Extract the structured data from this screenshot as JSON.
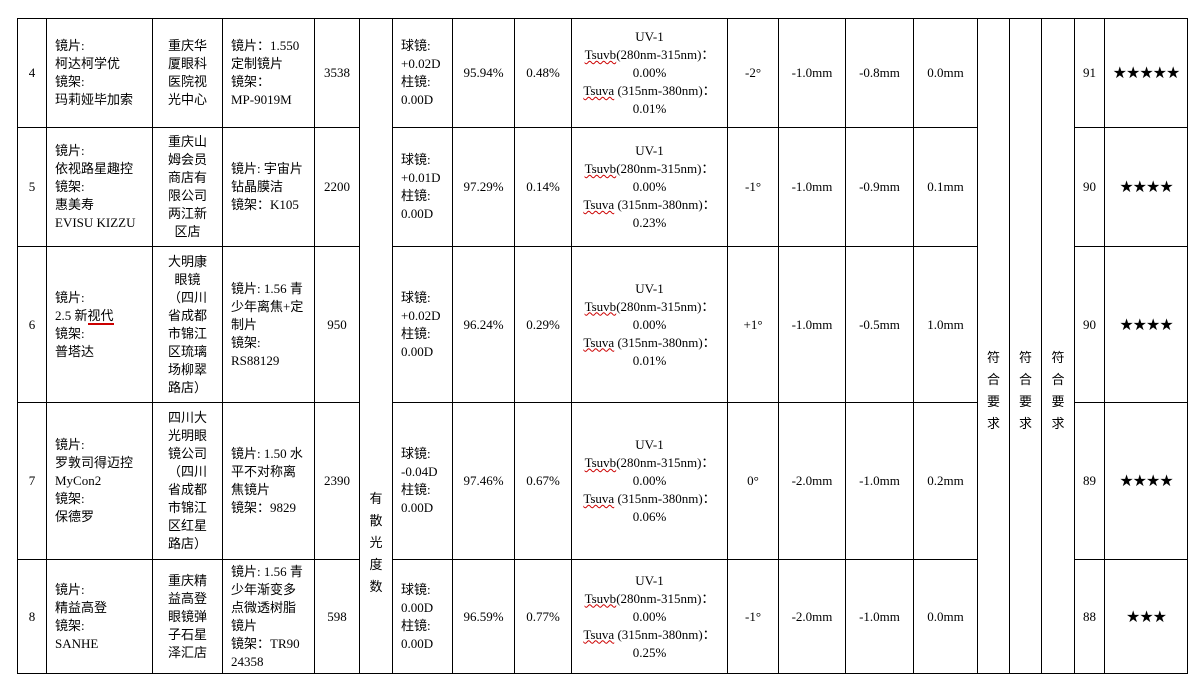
{
  "merged": {
    "astigmatism": "有散光度数",
    "conform1": "符合要求",
    "conform2": "符合要求",
    "conform3": "符合要求"
  },
  "rows": [
    {
      "no": "4",
      "product": [
        "镜片:",
        "柯达柯学优",
        "镜架:",
        "玛莉娅毕加索"
      ],
      "store": "重庆华厦眼科医院视光中心",
      "model": [
        "镜片：1.550",
        "定制镜片",
        "镜架：",
        "MP-9019M"
      ],
      "price": "3538",
      "power": [
        "球镜:",
        "+0.02D",
        "柱镜:",
        "0.00D"
      ],
      "transmittance": "95.94%",
      "haze": "0.48%",
      "uv": {
        "title": "UV-1",
        "uvb_label": "Tsuvb",
        "uvb_range": "(280nm-315nm)：",
        "uvb_value": "0.00%",
        "uva_label": "Tsuva",
        "uva_range": " (315nm-380nm)：",
        "uva_value": "0.01%"
      },
      "axis": "-2°",
      "v1": "-1.0mm",
      "v2": "-0.8mm",
      "v3": "0.0mm",
      "score": "91",
      "stars": "★★★★★",
      "star_count": 5
    },
    {
      "no": "5",
      "product": [
        "镜片:",
        "依视路星趣控",
        "镜架:",
        "惠美寿",
        "EVISU KIZZU"
      ],
      "store": "重庆山姆会员商店有限公司两江新区店",
      "model": [
        "镜片: 宇宙片",
        "钻晶膜洁",
        "镜架：K105"
      ],
      "price": "2200",
      "power": [
        "球镜:",
        "+0.01D",
        "柱镜:",
        "0.00D"
      ],
      "transmittance": "97.29%",
      "haze": "0.14%",
      "uv": {
        "title": "UV-1",
        "uvb_label": "Tsuvb",
        "uvb_range": "(280nm-315nm)：",
        "uvb_value": "0.00%",
        "uva_label": "Tsuva",
        "uva_range": " (315nm-380nm)：",
        "uva_value": "0.23%"
      },
      "axis": "-1°",
      "v1": "-1.0mm",
      "v2": "-0.9mm",
      "v3": "0.1mm",
      "score": "90",
      "stars": "★★★★",
      "star_count": 4
    },
    {
      "no": "6",
      "product": [
        "镜片:",
        "2.5 新视代",
        "镜架:",
        "普塔达"
      ],
      "store": "大明康眼镜（四川省成都市锦江区琉璃场柳翠路店）",
      "model": [
        "镜片: 1.56 青",
        "少年离焦+定",
        "制片",
        "镜架:",
        "RS88129"
      ],
      "price": "950",
      "power": [
        "球镜:",
        "+0.02D",
        "柱镜:",
        "0.00D"
      ],
      "transmittance": "96.24%",
      "haze": "0.29%",
      "uv": {
        "title": "UV-1",
        "uvb_label": "Tsuvb",
        "uvb_range": "(280nm-315nm)：",
        "uvb_value": "0.00%",
        "uva_label": "Tsuva",
        "uva_range": " (315nm-380nm)：",
        "uva_value": "0.01%"
      },
      "axis": "+1°",
      "v1": "-1.0mm",
      "v2": "-0.5mm",
      "v3": "1.0mm",
      "score": "90",
      "stars": "★★★★",
      "star_count": 4
    },
    {
      "no": "7",
      "product": [
        "镜片:",
        "罗敦司得迈控",
        "MyCon2",
        "镜架:",
        "保德罗"
      ],
      "store": "四川大光明眼镜公司（四川省成都市锦江区红星路店）",
      "model": [
        "镜片: 1.50 水",
        "平不对称离",
        "焦镜片",
        "镜架：9829"
      ],
      "price": "2390",
      "power": [
        "球镜:",
        "-0.04D",
        "柱镜:",
        "0.00D"
      ],
      "transmittance": "97.46%",
      "haze": "0.67%",
      "uv": {
        "title": "UV-1",
        "uvb_label": "Tsuvb",
        "uvb_range": "(280nm-315nm)：",
        "uvb_value": "0.00%",
        "uva_label": "Tsuva",
        "uva_range": " (315nm-380nm)：",
        "uva_value": "0.06%"
      },
      "axis": "0°",
      "v1": "-2.0mm",
      "v2": "-1.0mm",
      "v3": "0.2mm",
      "score": "89",
      "stars": "★★★★",
      "star_count": 4
    },
    {
      "no": "8",
      "product": [
        "镜片:",
        "精益高登",
        "镜架:",
        "SANHE"
      ],
      "store": "重庆精益高登眼镜弹子石星泽汇店",
      "model": [
        "镜片: 1.56 青",
        "少年渐变多",
        "点微透树脂",
        "镜片",
        "镜架：TR90",
        "24358"
      ],
      "price": "598",
      "power": [
        "球镜:",
        "0.00D",
        "柱镜:",
        "0.00D"
      ],
      "transmittance": "96.59%",
      "haze": "0.77%",
      "uv": {
        "title": "UV-1",
        "uvb_label": "Tsuvb",
        "uvb_range": "(280nm-315nm)：",
        "uvb_value": "0.00%",
        "uva_label": "Tsuva",
        "uva_range": " (315nm-380nm)：",
        "uva_value": "0.25%"
      },
      "axis": "-1°",
      "v1": "-2.0mm",
      "v2": "-1.0mm",
      "v3": "0.0mm",
      "score": "88",
      "stars": "★★★",
      "star_count": 3
    }
  ]
}
